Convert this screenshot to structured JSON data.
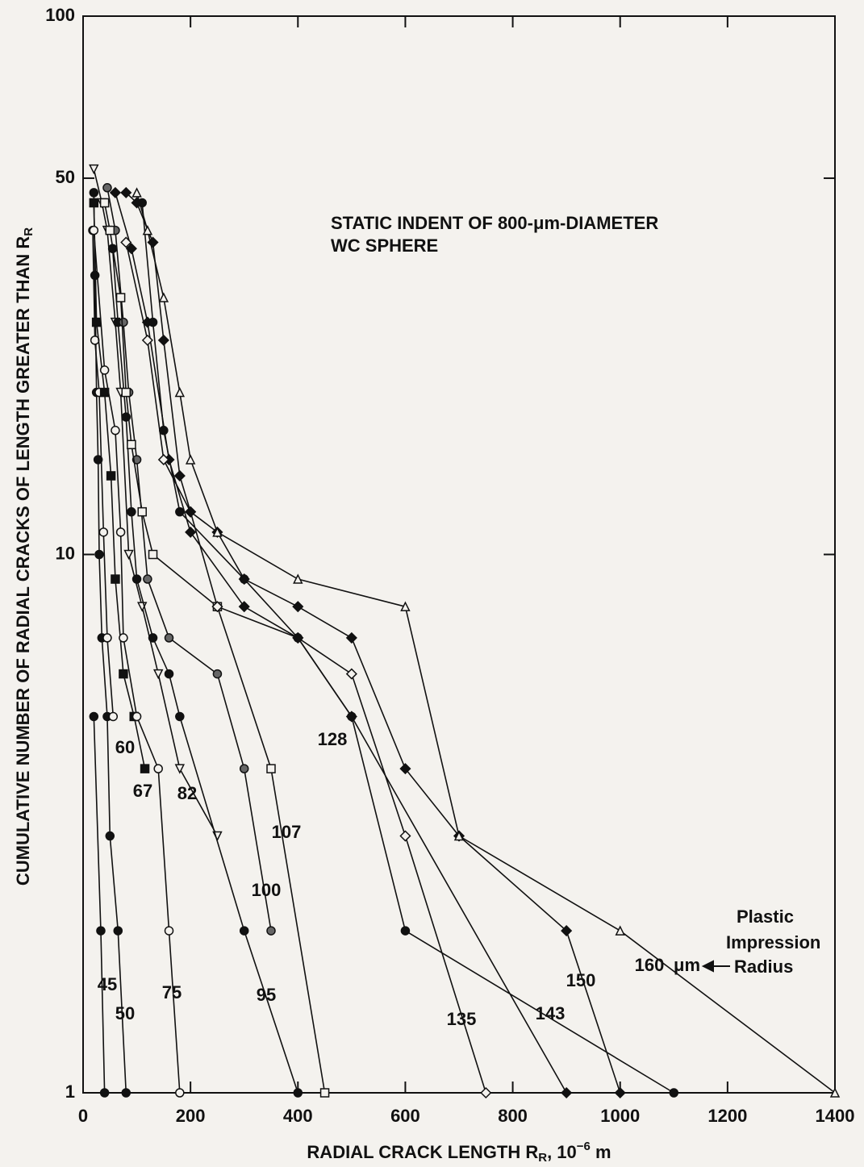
{
  "chart_data": {
    "type": "line",
    "title_lines": [
      "STATIC INDENT OF 800-μm-DIAMETER",
      "WC SPHERE"
    ],
    "x_label": [
      "RADIAL CRACK LENGTH R",
      "R",
      ", 10",
      "−6",
      " m"
    ],
    "y_label": [
      "CUMULATIVE NUMBER OF RADIAL CRACKS OF LENGTH GREATER THAN R",
      "R"
    ],
    "annotations": [
      "Plastic",
      "Impression",
      "Radius",
      "μm"
    ],
    "xlim": [
      0,
      1400
    ],
    "xticks": [
      0,
      200,
      400,
      600,
      800,
      1000,
      1200,
      1400
    ],
    "ylim": [
      1,
      100
    ],
    "yticks": [
      1,
      10,
      50,
      100
    ],
    "ylog": true,
    "color": "#111111",
    "series": [
      {
        "name": "45",
        "marker": "circle-filled",
        "x": [
          20,
          33,
          40
        ],
        "values": [
          5,
          2,
          1
        ]
      },
      {
        "name": "50",
        "marker": "circle-filled",
        "x": [
          20,
          22,
          25,
          28,
          30,
          35,
          45,
          50,
          65,
          80
        ],
        "values": [
          47,
          33,
          20,
          15,
          10,
          7,
          5,
          3,
          2,
          1
        ]
      },
      {
        "name": "60",
        "marker": "circle-open",
        "x": [
          18,
          22,
          30,
          38,
          45,
          56
        ],
        "values": [
          40,
          25,
          20,
          11,
          7,
          5
        ]
      },
      {
        "name": "67",
        "marker": "square-filled",
        "x": [
          20,
          25,
          40,
          52,
          60,
          75,
          95,
          115
        ],
        "values": [
          45,
          27,
          20,
          14,
          9,
          6,
          5,
          4
        ]
      },
      {
        "name": "75",
        "marker": "circle-open",
        "x": [
          20,
          40,
          60,
          70,
          75,
          100,
          140,
          160,
          180
        ],
        "values": [
          40,
          22,
          17,
          11,
          7,
          5,
          4,
          2,
          1
        ]
      },
      {
        "name": "82",
        "marker": "triangle-down-open",
        "x": [
          20,
          35,
          45,
          60,
          70,
          85,
          110,
          140,
          180,
          250
        ],
        "values": [
          52,
          45,
          40,
          27,
          20,
          10,
          8,
          6,
          4,
          3
        ]
      },
      {
        "name": "95",
        "marker": "circle-filled",
        "x": [
          55,
          65,
          80,
          90,
          100,
          130,
          160,
          180,
          300,
          400
        ],
        "values": [
          37,
          27,
          18,
          12,
          9,
          7,
          6,
          5,
          2,
          1
        ]
      },
      {
        "name": "100",
        "marker": "circle-half",
        "x": [
          45,
          60,
          75,
          85,
          100,
          120,
          160,
          250,
          300,
          350
        ],
        "values": [
          48,
          40,
          27,
          20,
          15,
          9,
          7,
          6,
          4,
          2
        ]
      },
      {
        "name": "107",
        "marker": "square-open",
        "x": [
          40,
          50,
          70,
          80,
          90,
          110,
          130,
          250,
          350,
          450
        ],
        "values": [
          45,
          40,
          30,
          20,
          16,
          12,
          10,
          8,
          4,
          1
        ]
      },
      {
        "name": "128",
        "marker": "diamond-filled",
        "x": [
          60,
          90,
          120,
          160,
          200,
          300,
          400,
          500,
          900
        ],
        "values": [
          47,
          37,
          27,
          15,
          11,
          8,
          7,
          5,
          1
        ]
      },
      {
        "name": "135",
        "marker": "diamond-open",
        "x": [
          80,
          120,
          150,
          200,
          250,
          400,
          500,
          600,
          750
        ],
        "values": [
          38,
          25,
          15,
          12,
          8,
          7,
          6,
          3,
          1
        ]
      },
      {
        "name": "143",
        "marker": "circle-filled",
        "x": [
          110,
          130,
          150,
          180,
          300,
          400,
          500,
          600,
          1100
        ],
        "values": [
          45,
          27,
          17,
          12,
          9,
          7,
          5,
          2,
          1
        ]
      },
      {
        "name": "150",
        "marker": "diamond-filled",
        "x": [
          80,
          100,
          130,
          150,
          180,
          200,
          250,
          300,
          400,
          500,
          600,
          700,
          900,
          1000
        ],
        "values": [
          47,
          45,
          38,
          25,
          14,
          12,
          11,
          9,
          8,
          7,
          4,
          3,
          2,
          1
        ]
      },
      {
        "name": "160",
        "marker": "triangle-open",
        "x": [
          100,
          120,
          150,
          180,
          200,
          250,
          400,
          600,
          700,
          1000,
          1400
        ],
        "values": [
          47,
          40,
          30,
          20,
          15,
          11,
          9,
          8,
          3,
          2,
          1
        ]
      }
    ]
  }
}
